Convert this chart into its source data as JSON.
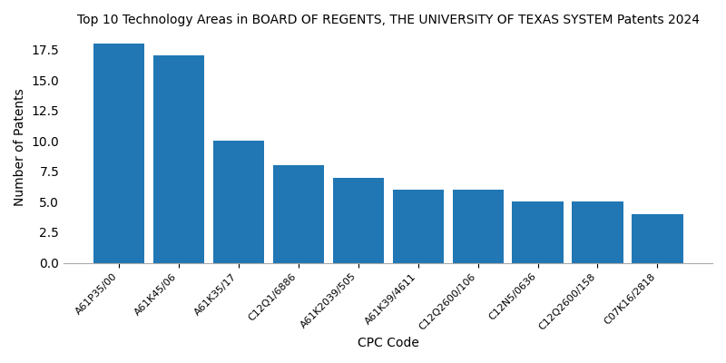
{
  "title": "Top 10 Technology Areas in BOARD OF REGENTS, THE UNIVERSITY OF TEXAS SYSTEM Patents 2024",
  "xlabel": "CPC Code",
  "ylabel": "Number of Patents",
  "categories": [
    "A61P35/00",
    "A61K45/06",
    "A61K35/17",
    "C12Q1/6886",
    "A61K2039/505",
    "A61K39/4611",
    "C12Q2600/106",
    "C12N5/0636",
    "C12Q2600/158",
    "C07K16/2818"
  ],
  "values": [
    18,
    17,
    10,
    8,
    7,
    6,
    6,
    5,
    5,
    4
  ],
  "bar_color": "#2077b4",
  "ylim": [
    0,
    19
  ],
  "yticks": [
    0.0,
    2.5,
    5.0,
    7.5,
    10.0,
    12.5,
    15.0,
    17.5
  ],
  "title_fontsize": 10,
  "axis_label_fontsize": 10,
  "tick_fontsize": 8,
  "figsize": [
    8.0,
    4.0
  ],
  "dpi": 100,
  "bar_width": 0.85
}
